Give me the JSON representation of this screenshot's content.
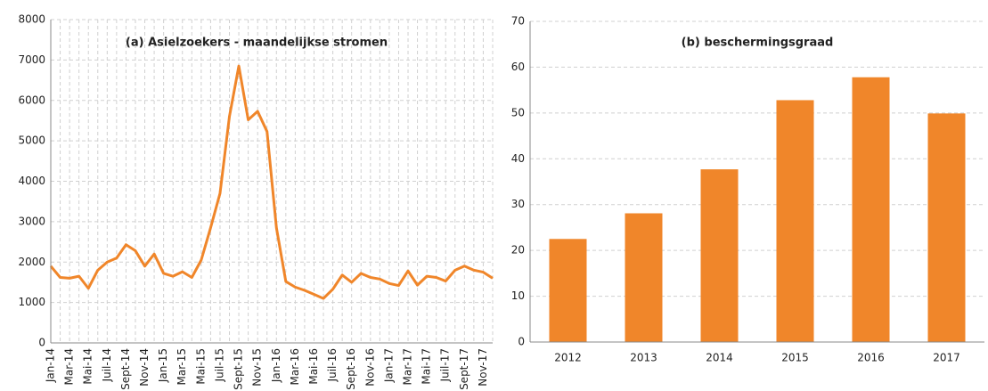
{
  "chart_data": [
    {
      "type": "line",
      "title": "(a) Asielzoekers - maandelijkse stromen",
      "categories": [
        "Jan-14",
        null,
        "Mar-14",
        null,
        "Mai-14",
        null,
        "Juil-14",
        null,
        "Sept-14",
        null,
        "Nov-14",
        null,
        "Jan-15",
        null,
        "Mar-15",
        null,
        "Mai-15",
        null,
        "Juil-15",
        null,
        "Sept-15",
        null,
        "Nov-15",
        null,
        "Jan-16",
        null,
        "Mar-16",
        null,
        "Mai-16",
        null,
        "Juil-16",
        null,
        "Sept-16",
        null,
        "Nov-16",
        null,
        "Jan-17",
        null,
        "Mar-17",
        null,
        "Mai-17",
        null,
        "Juil-17",
        null,
        "Sept-17",
        null,
        "Nov-17",
        null
      ],
      "series": [
        {
          "name": "Asielzoekers",
          "color": "#f0862a",
          "values": [
            1900,
            1620,
            1600,
            1650,
            1350,
            1800,
            2000,
            2100,
            2430,
            2280,
            1900,
            2200,
            1720,
            1650,
            1760,
            1620,
            2050,
            2850,
            3700,
            5600,
            6850,
            5520,
            5730,
            5230,
            2850,
            1520,
            1380,
            1300,
            1200,
            1100,
            1330,
            1680,
            1500,
            1720,
            1620,
            1580,
            1470,
            1420,
            1780,
            1430,
            1650,
            1620,
            1530,
            1800,
            1900,
            1800,
            1750,
            1600
          ]
        }
      ],
      "ylim": [
        0,
        8000
      ],
      "yticks": [
        0,
        1000,
        2000,
        3000,
        4000,
        5000,
        6000,
        7000,
        8000
      ],
      "grid": true
    },
    {
      "type": "bar",
      "title": "(b) beschermingsgraad",
      "categories": [
        "2012",
        "2013",
        "2014",
        "2015",
        "2016",
        "2017"
      ],
      "values": [
        22.5,
        28.1,
        37.7,
        52.8,
        57.8,
        49.9
      ],
      "color": "#f0862a",
      "ylim": [
        0,
        70
      ],
      "yticks": [
        0,
        10,
        20,
        30,
        40,
        50,
        60,
        70
      ],
      "grid": true
    }
  ]
}
